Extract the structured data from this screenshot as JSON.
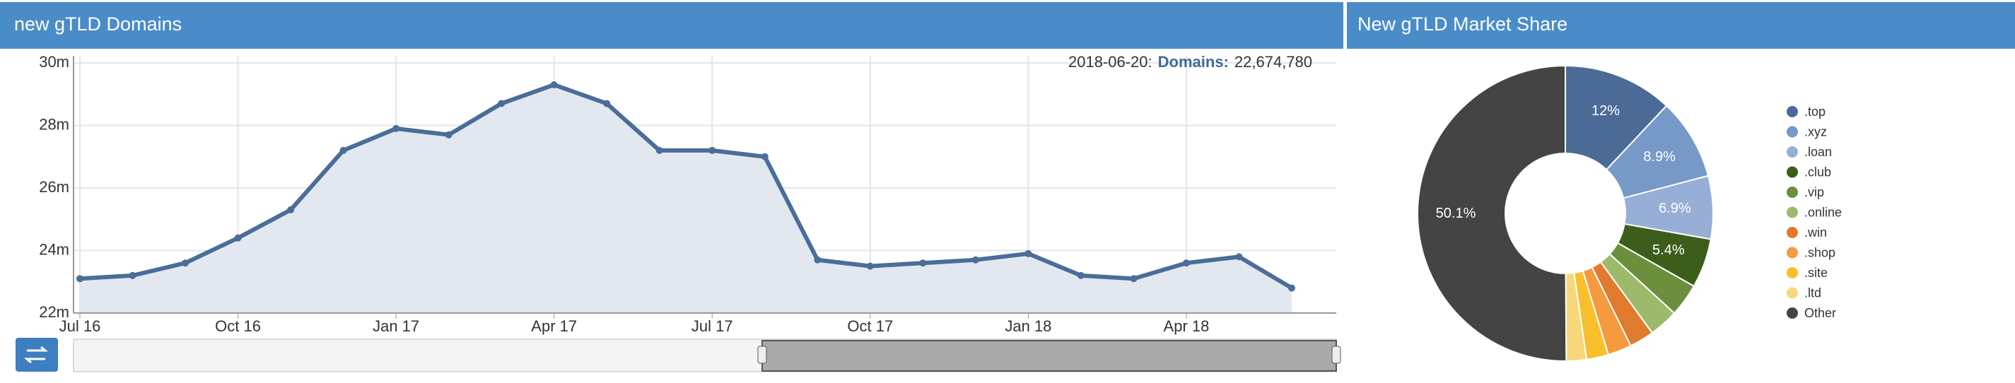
{
  "chart_data": [
    {
      "type": "line",
      "title": "new gTLD Domains",
      "x": [
        "2016-07",
        "2016-08",
        "2016-09",
        "2016-10",
        "2016-11",
        "2016-12",
        "2017-01",
        "2017-02",
        "2017-03",
        "2017-04",
        "2017-05",
        "2017-06",
        "2017-07",
        "2017-08",
        "2017-09",
        "2017-10",
        "2017-11",
        "2017-12",
        "2018-01",
        "2018-02",
        "2018-03",
        "2018-04",
        "2018-05",
        "2018-06"
      ],
      "series": [
        {
          "name": "Domains",
          "color": "#4a6d99",
          "values": [
            23.1,
            23.2,
            23.6,
            24.4,
            25.3,
            27.2,
            27.9,
            27.7,
            28.7,
            29.3,
            28.7,
            27.2,
            27.2,
            27.0,
            23.7,
            23.5,
            23.6,
            23.7,
            23.9,
            23.2,
            23.1,
            23.6,
            23.8,
            22.8
          ]
        }
      ],
      "xlim": [
        "2016-07",
        "2018-06"
      ],
      "xticks": [
        {
          "value": "2016-07",
          "label": "Jul 16"
        },
        {
          "value": "2016-10",
          "label": "Oct 16"
        },
        {
          "value": "2017-01",
          "label": "Jan 17"
        },
        {
          "value": "2017-04",
          "label": "Apr 17"
        },
        {
          "value": "2017-07",
          "label": "Jul 17"
        },
        {
          "value": "2017-10",
          "label": "Oct 17"
        },
        {
          "value": "2018-01",
          "label": "Jan 18"
        },
        {
          "value": "2018-04",
          "label": "Apr 18"
        }
      ],
      "ylim": [
        22,
        30
      ],
      "yticks": [
        {
          "value": 22,
          "label": "22m"
        },
        {
          "value": 24,
          "label": "24m"
        },
        {
          "value": 26,
          "label": "26m"
        },
        {
          "value": 28,
          "label": "28m"
        },
        {
          "value": 30,
          "label": "30m"
        }
      ],
      "grid": true,
      "tooltip": {
        "date": "2018-06-20:",
        "series": "Domains:",
        "value": "22,674,780"
      }
    },
    {
      "type": "pie",
      "title": "New gTLD Market Share",
      "categories": [
        ".top",
        ".xyz",
        ".loan",
        ".club",
        ".vip",
        ".online",
        ".win",
        ".shop",
        ".site",
        ".ltd",
        "Other"
      ],
      "values": [
        12,
        8.9,
        6.9,
        5.4,
        3.6,
        3.2,
        2.7,
        2.6,
        2.4,
        2.2,
        50.1
      ],
      "value_labels": [
        "12%",
        "8.9%",
        "6.9%",
        "5.4%",
        null,
        null,
        null,
        null,
        null,
        null,
        "50.1%"
      ],
      "colors": [
        "#4b6b96",
        "#7699c8",
        "#97aed6",
        "#3d5e1b",
        "#6b8f3d",
        "#9dba6a",
        "#e07a2f",
        "#f59a3e",
        "#f7c02c",
        "#f8d77a",
        "#444444"
      ],
      "legend": "right"
    }
  ]
}
